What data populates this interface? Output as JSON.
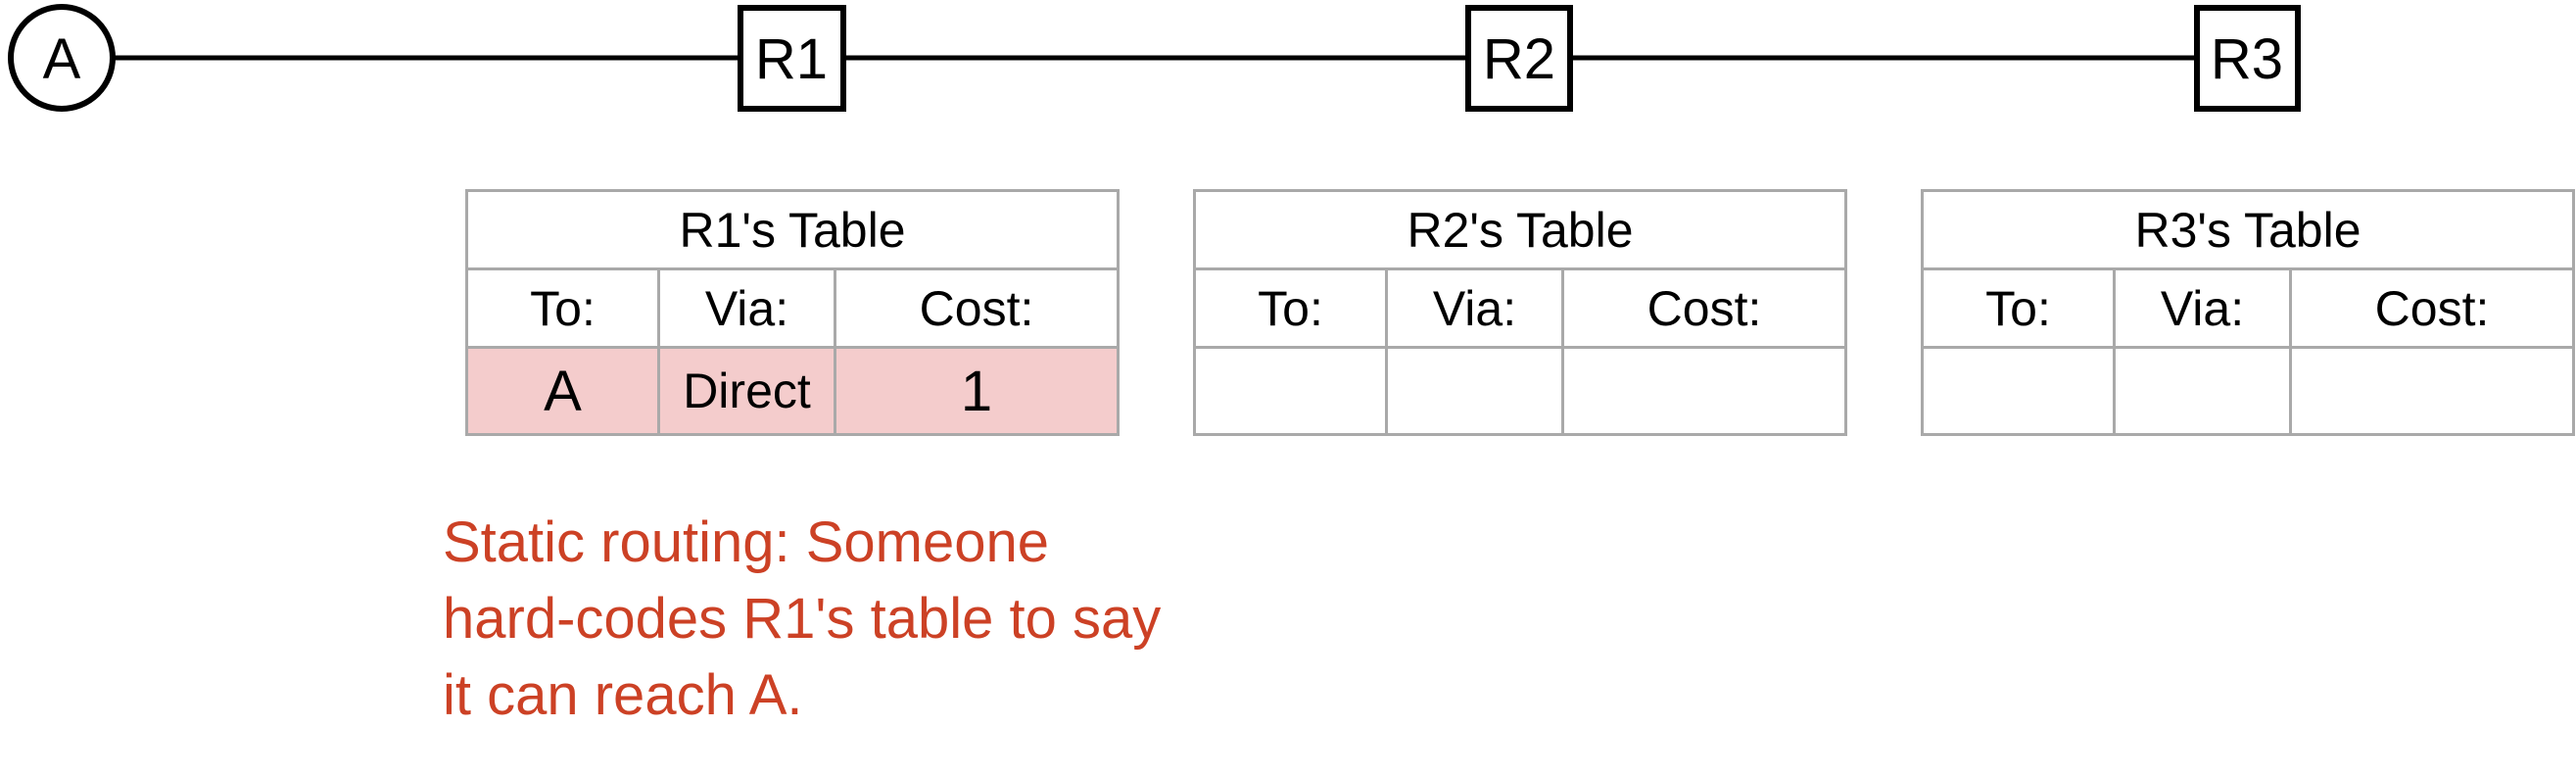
{
  "topology": {
    "nodes": [
      {
        "id": "A",
        "label": "A",
        "shape": "circle"
      },
      {
        "id": "R1",
        "label": "R1",
        "shape": "square"
      },
      {
        "id": "R2",
        "label": "R2",
        "shape": "square"
      },
      {
        "id": "R3",
        "label": "R3",
        "shape": "square"
      }
    ],
    "links": [
      [
        "A",
        "R1"
      ],
      [
        "R1",
        "R2"
      ],
      [
        "R2",
        "R3"
      ]
    ]
  },
  "tables": [
    {
      "title": "R1's Table",
      "headers": {
        "to": "To:",
        "via": "Via:",
        "cost": "Cost:"
      },
      "rows": [
        {
          "to": "A",
          "via": "Direct",
          "cost": "1",
          "highlighted": true
        }
      ]
    },
    {
      "title": "R2's Table",
      "headers": {
        "to": "To:",
        "via": "Via:",
        "cost": "Cost:"
      },
      "rows": [
        {
          "to": "",
          "via": "",
          "cost": "",
          "highlighted": false
        }
      ]
    },
    {
      "title": "R3's Table",
      "headers": {
        "to": "To:",
        "via": "Via:",
        "cost": "Cost:"
      },
      "rows": [
        {
          "to": "",
          "via": "",
          "cost": "",
          "highlighted": false
        }
      ]
    }
  ],
  "note": {
    "text": "Static routing: Someone hard-codes R1's table to say it can reach A."
  },
  "colors": {
    "highlight_row": "#f4cccc",
    "note_text": "#cc4125",
    "table_border": "#a9a9a9"
  }
}
